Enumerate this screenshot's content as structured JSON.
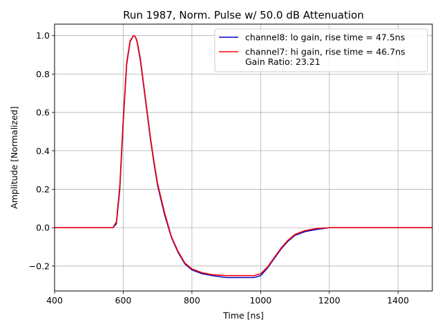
{
  "chart_data": {
    "type": "line",
    "title": "Run 1987, Norm. Pulse w/ 50.0 dB Attenuation",
    "xlabel": "Time [ns]",
    "ylabel": "Amplitude [Normalized]",
    "xlim": [
      400,
      1500
    ],
    "ylim": [
      -0.33,
      1.06
    ],
    "xticks": [
      400,
      600,
      800,
      1000,
      1200,
      1400
    ],
    "xtick_labels": [
      "400",
      "600",
      "800",
      "1000",
      "1200",
      "1400"
    ],
    "yticks": [
      -0.2,
      0.0,
      0.2,
      0.4,
      0.6,
      0.8,
      1.0
    ],
    "ytick_labels": [
      "−0.2",
      "0.0",
      "0.2",
      "0.4",
      "0.6",
      "0.8",
      "1.0"
    ],
    "grid": true,
    "legend_position": "top-right",
    "legend_extra_text": "Gain Ratio: 23.21",
    "series": [
      {
        "name": "channel8: lo gain, rise time = 47.5ns",
        "color": "#0000cc",
        "x": [
          400,
          500,
          570,
          580,
          590,
          600,
          610,
          620,
          630,
          635,
          640,
          650,
          660,
          670,
          680,
          690,
          700,
          720,
          740,
          760,
          780,
          800,
          830,
          860,
          900,
          950,
          980,
          1000,
          1020,
          1040,
          1060,
          1080,
          1100,
          1130,
          1160,
          1200,
          1300,
          1400,
          1500
        ],
        "y": [
          0.0,
          0.0,
          0.0,
          0.02,
          0.2,
          0.55,
          0.85,
          0.97,
          1.0,
          0.995,
          0.97,
          0.87,
          0.73,
          0.59,
          0.45,
          0.33,
          0.22,
          0.07,
          -0.05,
          -0.13,
          -0.19,
          -0.22,
          -0.24,
          -0.25,
          -0.26,
          -0.26,
          -0.26,
          -0.25,
          -0.21,
          -0.16,
          -0.11,
          -0.07,
          -0.04,
          -0.02,
          -0.01,
          0.0,
          0.0,
          0.0,
          0.0
        ]
      },
      {
        "name": "channel7: hi gain, rise time = 46.7ns",
        "color": "#ff0000",
        "x": [
          400,
          500,
          570,
          580,
          590,
          600,
          610,
          620,
          630,
          635,
          640,
          650,
          660,
          670,
          680,
          690,
          700,
          720,
          740,
          760,
          780,
          800,
          830,
          860,
          900,
          950,
          980,
          1000,
          1020,
          1040,
          1060,
          1080,
          1100,
          1130,
          1160,
          1200,
          1300,
          1400,
          1500
        ],
        "y": [
          0.0,
          0.0,
          0.0,
          0.03,
          0.22,
          0.57,
          0.86,
          0.975,
          1.0,
          0.995,
          0.975,
          0.88,
          0.74,
          0.6,
          0.46,
          0.34,
          0.23,
          0.08,
          -0.045,
          -0.125,
          -0.185,
          -0.215,
          -0.235,
          -0.245,
          -0.25,
          -0.25,
          -0.25,
          -0.24,
          -0.205,
          -0.155,
          -0.105,
          -0.065,
          -0.035,
          -0.015,
          -0.005,
          0.0,
          0.0,
          0.0,
          0.0
        ]
      }
    ]
  }
}
